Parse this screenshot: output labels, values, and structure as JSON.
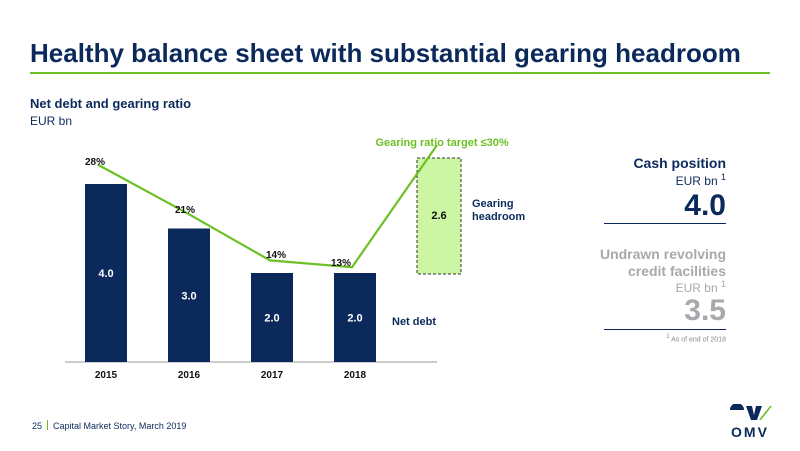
{
  "slide": {
    "title": "Healthy balance sheet with substantial gearing headroom",
    "page_number": "25",
    "footer_text": "Capital Market Story, March 2019",
    "logo_text": "OMV"
  },
  "side_panel": {
    "cash_title": "Cash position",
    "cash_unit": "EUR bn",
    "cash_footnote_mark": "1",
    "cash_value": "4.0",
    "undrawn_title": "Undrawn revolving credit facilities",
    "undrawn_unit": "EUR bn",
    "undrawn_footnote_mark": "1",
    "undrawn_value": "3.5",
    "footnote_mark": "1",
    "footnote": "As of end of 2018"
  },
  "colors": {
    "navy": "#0b2a5b",
    "green": "#6cc024",
    "light_green": "#ccf5a4",
    "grey": "#a7a9ac"
  },
  "chart_data": {
    "type": "bar",
    "title": "Net debt and gearing ratio",
    "subtitle": "EUR bn",
    "categories": [
      "2015",
      "2016",
      "2017",
      "2018"
    ],
    "series": [
      {
        "name": "Net debt",
        "values": [
          4.0,
          3.0,
          2.0,
          2.0
        ],
        "value_labels": [
          "4.0",
          "3.0",
          "2.0",
          "2.0"
        ],
        "color": "#0b2a5b"
      }
    ],
    "gearing_ratio": {
      "values": [
        28,
        21,
        14,
        13
      ],
      "labels": [
        "28%",
        "21%",
        "14%",
        "13%"
      ],
      "target": 30,
      "target_label": "Gearing ratio target ≤30%",
      "color": "#6cc024"
    },
    "gearing_headroom": {
      "label": "Gearing headroom",
      "value": 2.6,
      "value_label": "2.6",
      "color": "#ccf5a4"
    }
  }
}
